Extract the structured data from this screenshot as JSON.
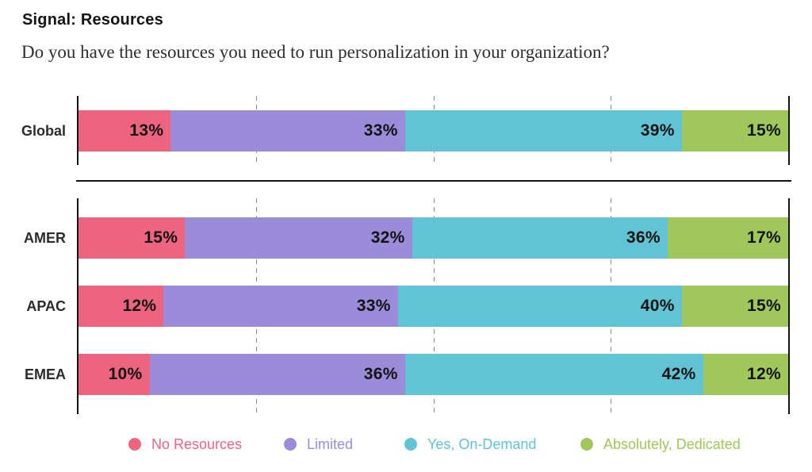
{
  "header": {
    "title": "Signal: Resources",
    "subtitle": "Do you have the resources you need to run personalization in your organization?"
  },
  "chart_data": {
    "type": "bar",
    "stacked": true,
    "orientation": "horizontal",
    "title": "Signal: Resources",
    "question": "Do you have the resources you need to run personalization in your organization?",
    "unit": "%",
    "xlim": [
      0,
      100
    ],
    "gridlines_percent": [
      25,
      50,
      75
    ],
    "grid": "dashed-vertical",
    "legend_position": "bottom",
    "categories": [
      "Global",
      "AMER",
      "APAC",
      "EMEA"
    ],
    "groups": [
      {
        "name": "global",
        "rows": [
          "Global"
        ]
      },
      {
        "name": "regions",
        "rows": [
          "AMER",
          "APAC",
          "EMEA"
        ]
      }
    ],
    "series": [
      {
        "name": "No Resources",
        "color": "#EC647F",
        "values": [
          13,
          15,
          12,
          10
        ]
      },
      {
        "name": "Limited",
        "color": "#9A8CD9",
        "values": [
          33,
          32,
          33,
          36
        ]
      },
      {
        "name": "Yes, On-Demand",
        "color": "#62C3D5",
        "values": [
          39,
          36,
          40,
          42
        ]
      },
      {
        "name": "Absolutely, Dedicated",
        "color": "#9FC75B",
        "values": [
          15,
          17,
          15,
          12
        ]
      }
    ]
  },
  "legend": {
    "items": [
      {
        "label": "No Resources",
        "color": "#EC647F"
      },
      {
        "label": "Limited",
        "color": "#9A8CD9"
      },
      {
        "label": "Yes, On-Demand",
        "color": "#62C3D5"
      },
      {
        "label": "Absolutely, Dedicated",
        "color": "#9FC75B"
      }
    ]
  },
  "colors": {
    "axis": "#131313",
    "gridline": "#8a8a8a",
    "bar_label": "#131313"
  }
}
